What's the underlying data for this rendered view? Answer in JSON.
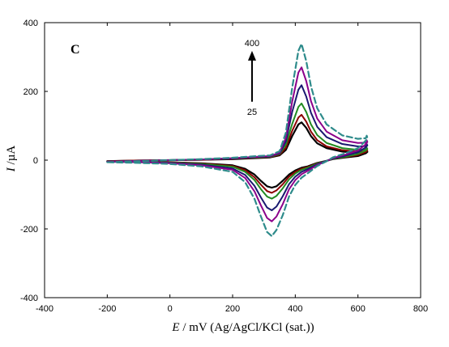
{
  "chart_data": {
    "type": "line",
    "panel_label": "C",
    "xlabel": {
      "italic": "E",
      "rest": " / mV (Ag/AgCl/KCl (sat.))"
    },
    "ylabel": {
      "italic": "I",
      "rest": " /µA"
    },
    "xlim": [
      -400,
      800
    ],
    "ylim": [
      -400,
      400
    ],
    "x_ticks": [
      -400,
      -200,
      0,
      200,
      400,
      600,
      800
    ],
    "y_ticks": [
      -400,
      -200,
      0,
      200,
      400
    ],
    "x_tick_labels": [
      "-400",
      "-200",
      "0",
      "200",
      "400",
      "600",
      "800"
    ],
    "y_tick_labels": [
      "-400",
      "-200",
      "0",
      "200",
      "400"
    ],
    "grid": false,
    "annotation": {
      "top_label": "400",
      "bottom_label": "25",
      "arrow_x": 262,
      "arrow_y_from": 170,
      "arrow_y_to": 318
    },
    "series": [
      {
        "color": "#000000",
        "dash": false,
        "width": 2.2,
        "points": [
          [
            -200,
            -3
          ],
          [
            -100,
            -1
          ],
          [
            0,
            0
          ],
          [
            100,
            1
          ],
          [
            200,
            3
          ],
          [
            280,
            6
          ],
          [
            320,
            8
          ],
          [
            350,
            14
          ],
          [
            370,
            30
          ],
          [
            390,
            70
          ],
          [
            410,
            104
          ],
          [
            420,
            110
          ],
          [
            435,
            94
          ],
          [
            450,
            70
          ],
          [
            470,
            49
          ],
          [
            500,
            35
          ],
          [
            550,
            25
          ],
          [
            600,
            21
          ],
          [
            625,
            21
          ],
          [
            628,
            26
          ],
          [
            630,
            24
          ],
          [
            625,
            20
          ],
          [
            600,
            12
          ],
          [
            560,
            8
          ],
          [
            520,
            3
          ],
          [
            500,
            -2
          ],
          [
            470,
            -8
          ],
          [
            440,
            -18
          ],
          [
            420,
            -22
          ],
          [
            400,
            -30
          ],
          [
            380,
            -42
          ],
          [
            360,
            -60
          ],
          [
            340,
            -76
          ],
          [
            325,
            -80
          ],
          [
            310,
            -76
          ],
          [
            290,
            -60
          ],
          [
            270,
            -42
          ],
          [
            240,
            -25
          ],
          [
            200,
            -15
          ],
          [
            100,
            -9
          ],
          [
            0,
            -6
          ],
          [
            -100,
            -4
          ],
          [
            -200,
            -3
          ]
        ]
      },
      {
        "color": "#8b0000",
        "dash": false,
        "width": 2,
        "points": [
          [
            -200,
            -3
          ],
          [
            -100,
            -1
          ],
          [
            0,
            0
          ],
          [
            100,
            1
          ],
          [
            200,
            4
          ],
          [
            280,
            7
          ],
          [
            320,
            9
          ],
          [
            350,
            16
          ],
          [
            370,
            36
          ],
          [
            390,
            85
          ],
          [
            410,
            124
          ],
          [
            420,
            132
          ],
          [
            435,
            112
          ],
          [
            450,
            83
          ],
          [
            470,
            58
          ],
          [
            500,
            40
          ],
          [
            550,
            29
          ],
          [
            600,
            25
          ],
          [
            625,
            26
          ],
          [
            628,
            31
          ],
          [
            630,
            28
          ],
          [
            625,
            24
          ],
          [
            600,
            15
          ],
          [
            560,
            9
          ],
          [
            520,
            4
          ],
          [
            500,
            -2
          ],
          [
            470,
            -9
          ],
          [
            440,
            -20
          ],
          [
            420,
            -25
          ],
          [
            400,
            -34
          ],
          [
            380,
            -48
          ],
          [
            360,
            -70
          ],
          [
            340,
            -88
          ],
          [
            325,
            -95
          ],
          [
            310,
            -90
          ],
          [
            290,
            -71
          ],
          [
            270,
            -50
          ],
          [
            240,
            -29
          ],
          [
            200,
            -17
          ],
          [
            100,
            -10
          ],
          [
            0,
            -6
          ],
          [
            -100,
            -4
          ],
          [
            -200,
            -3
          ]
        ]
      },
      {
        "color": "#228b22",
        "dash": false,
        "width": 2,
        "points": [
          [
            -200,
            -4
          ],
          [
            -100,
            -2
          ],
          [
            0,
            0
          ],
          [
            100,
            2
          ],
          [
            200,
            5
          ],
          [
            280,
            8
          ],
          [
            320,
            10
          ],
          [
            350,
            18
          ],
          [
            370,
            45
          ],
          [
            390,
            105
          ],
          [
            410,
            155
          ],
          [
            420,
            165
          ],
          [
            435,
            140
          ],
          [
            450,
            104
          ],
          [
            470,
            73
          ],
          [
            500,
            50
          ],
          [
            550,
            35
          ],
          [
            600,
            30
          ],
          [
            625,
            31
          ],
          [
            628,
            36
          ],
          [
            630,
            33
          ],
          [
            625,
            28
          ],
          [
            600,
            18
          ],
          [
            560,
            10
          ],
          [
            520,
            4
          ],
          [
            500,
            -2
          ],
          [
            470,
            -10
          ],
          [
            440,
            -22
          ],
          [
            420,
            -28
          ],
          [
            400,
            -39
          ],
          [
            380,
            -56
          ],
          [
            360,
            -82
          ],
          [
            340,
            -104
          ],
          [
            325,
            -112
          ],
          [
            310,
            -106
          ],
          [
            290,
            -84
          ],
          [
            270,
            -58
          ],
          [
            240,
            -34
          ],
          [
            200,
            -19
          ],
          [
            100,
            -11
          ],
          [
            0,
            -7
          ],
          [
            -100,
            -5
          ],
          [
            -200,
            -4
          ]
        ]
      },
      {
        "color": "#191970",
        "dash": false,
        "width": 2,
        "points": [
          [
            -200,
            -4
          ],
          [
            -100,
            -2
          ],
          [
            0,
            0
          ],
          [
            100,
            2
          ],
          [
            200,
            5
          ],
          [
            280,
            9
          ],
          [
            320,
            11
          ],
          [
            350,
            20
          ],
          [
            370,
            55
          ],
          [
            390,
            140
          ],
          [
            410,
            205
          ],
          [
            420,
            218
          ],
          [
            435,
            185
          ],
          [
            450,
            138
          ],
          [
            470,
            97
          ],
          [
            500,
            67
          ],
          [
            550,
            47
          ],
          [
            600,
            40
          ],
          [
            625,
            41
          ],
          [
            628,
            47
          ],
          [
            630,
            43
          ],
          [
            625,
            37
          ],
          [
            600,
            23
          ],
          [
            560,
            13
          ],
          [
            520,
            5
          ],
          [
            500,
            -2
          ],
          [
            470,
            -12
          ],
          [
            440,
            -26
          ],
          [
            420,
            -34
          ],
          [
            400,
            -48
          ],
          [
            380,
            -70
          ],
          [
            360,
            -105
          ],
          [
            340,
            -135
          ],
          [
            325,
            -146
          ],
          [
            310,
            -138
          ],
          [
            290,
            -108
          ],
          [
            270,
            -75
          ],
          [
            240,
            -43
          ],
          [
            200,
            -24
          ],
          [
            100,
            -13
          ],
          [
            0,
            -8
          ],
          [
            -100,
            -6
          ],
          [
            -200,
            -4
          ]
        ]
      },
      {
        "color": "#8b008b",
        "dash": false,
        "width": 2,
        "points": [
          [
            -200,
            -5
          ],
          [
            -100,
            -2
          ],
          [
            0,
            0
          ],
          [
            100,
            2
          ],
          [
            200,
            6
          ],
          [
            280,
            10
          ],
          [
            320,
            12
          ],
          [
            350,
            22
          ],
          [
            370,
            65
          ],
          [
            390,
            170
          ],
          [
            410,
            255
          ],
          [
            420,
            270
          ],
          [
            435,
            230
          ],
          [
            450,
            172
          ],
          [
            470,
            121
          ],
          [
            500,
            83
          ],
          [
            550,
            58
          ],
          [
            600,
            50
          ],
          [
            625,
            51
          ],
          [
            628,
            58
          ],
          [
            630,
            53
          ],
          [
            625,
            46
          ],
          [
            600,
            28
          ],
          [
            560,
            16
          ],
          [
            520,
            6
          ],
          [
            500,
            -3
          ],
          [
            470,
            -14
          ],
          [
            440,
            -31
          ],
          [
            420,
            -41
          ],
          [
            400,
            -58
          ],
          [
            380,
            -85
          ],
          [
            360,
            -128
          ],
          [
            340,
            -164
          ],
          [
            325,
            -178
          ],
          [
            310,
            -168
          ],
          [
            290,
            -131
          ],
          [
            270,
            -91
          ],
          [
            240,
            -52
          ],
          [
            200,
            -28
          ],
          [
            100,
            -15
          ],
          [
            0,
            -9
          ],
          [
            -100,
            -6
          ],
          [
            -200,
            -5
          ]
        ]
      },
      {
        "color": "#2e8b8b",
        "dash": true,
        "width": 2.2,
        "points": [
          [
            -200,
            -6
          ],
          [
            -100,
            -3
          ],
          [
            0,
            0
          ],
          [
            100,
            3
          ],
          [
            200,
            7
          ],
          [
            280,
            12
          ],
          [
            320,
            14
          ],
          [
            350,
            26
          ],
          [
            370,
            80
          ],
          [
            390,
            210
          ],
          [
            410,
            318
          ],
          [
            420,
            338
          ],
          [
            435,
            288
          ],
          [
            450,
            215
          ],
          [
            470,
            151
          ],
          [
            500,
            104
          ],
          [
            550,
            72
          ],
          [
            600,
            62
          ],
          [
            625,
            64
          ],
          [
            628,
            71
          ],
          [
            630,
            65
          ],
          [
            625,
            57
          ],
          [
            600,
            35
          ],
          [
            560,
            20
          ],
          [
            520,
            8
          ],
          [
            500,
            -3
          ],
          [
            470,
            -17
          ],
          [
            440,
            -38
          ],
          [
            420,
            -51
          ],
          [
            400,
            -72
          ],
          [
            380,
            -106
          ],
          [
            360,
            -160
          ],
          [
            340,
            -203
          ],
          [
            325,
            -221
          ],
          [
            310,
            -209
          ],
          [
            290,
            -163
          ],
          [
            270,
            -113
          ],
          [
            240,
            -64
          ],
          [
            200,
            -34
          ],
          [
            100,
            -18
          ],
          [
            0,
            -11
          ],
          [
            -100,
            -8
          ],
          [
            -200,
            -6
          ]
        ]
      }
    ]
  }
}
